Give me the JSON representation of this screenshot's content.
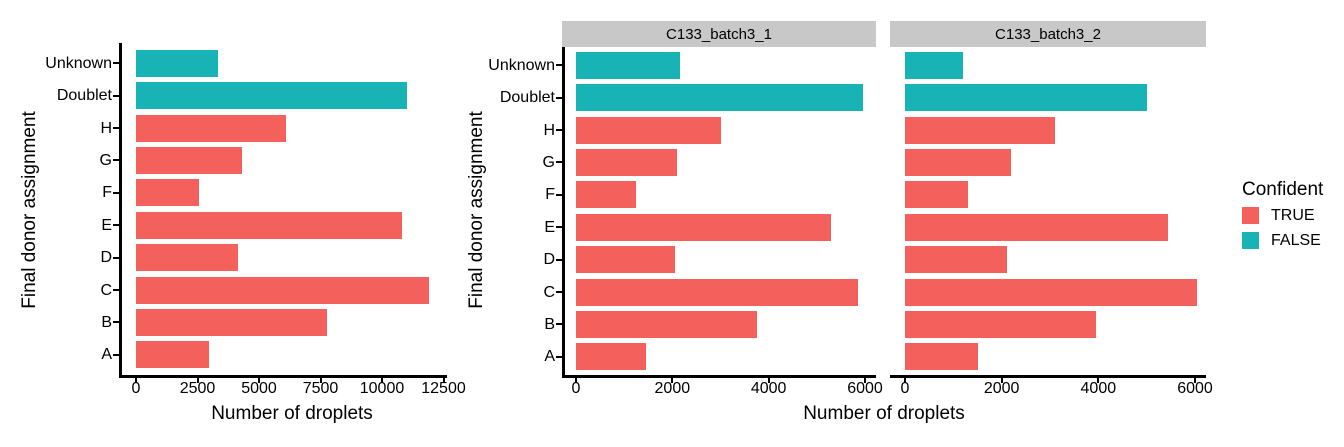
{
  "figure": {
    "background": "#FFFFFF",
    "colors": {
      "TRUE": "#F4605C",
      "FALSE": "#17B3B5",
      "strip_bg": "#C8C8C8",
      "axis": "#000000",
      "text": "#000000"
    },
    "legend": {
      "title": "Confident",
      "items": [
        {
          "label": "TRUE",
          "key": "TRUE"
        },
        {
          "label": "FALSE",
          "key": "FALSE"
        }
      ]
    }
  },
  "chart_data": [
    {
      "type": "bar",
      "orientation": "horizontal",
      "panel": "overall",
      "xlabel": "Number of droplets",
      "ylabel": "Final donor assignment",
      "categories_top_to_bottom": [
        "Unknown",
        "Doublet",
        "H",
        "G",
        "F",
        "E",
        "D",
        "C",
        "B",
        "A"
      ],
      "confident_top_to_bottom": [
        "FALSE",
        "FALSE",
        "TRUE",
        "TRUE",
        "TRUE",
        "TRUE",
        "TRUE",
        "TRUE",
        "TRUE",
        "TRUE"
      ],
      "values_top_to_bottom": [
        3350,
        11000,
        6100,
        4300,
        2550,
        10800,
        4150,
        11900,
        7750,
        2950
      ],
      "xlim": [
        0,
        12500
      ],
      "xticks": [
        0,
        2500,
        5000,
        7500,
        10000,
        12500
      ],
      "grid": false,
      "legend_position": "none"
    },
    {
      "type": "bar",
      "orientation": "horizontal",
      "xlabel": "Number of droplets",
      "ylabel": "Final donor assignment",
      "categories_top_to_bottom": [
        "Unknown",
        "Doublet",
        "H",
        "G",
        "F",
        "E",
        "D",
        "C",
        "B",
        "A"
      ],
      "confident_top_to_bottom": [
        "FALSE",
        "FALSE",
        "TRUE",
        "TRUE",
        "TRUE",
        "TRUE",
        "TRUE",
        "TRUE",
        "TRUE",
        "TRUE"
      ],
      "xlim": [
        0,
        6000
      ],
      "xticks": [
        0,
        2000,
        4000,
        6000
      ],
      "grid": false,
      "legend_position": "right",
      "facets": [
        {
          "label": "C133_batch3_1",
          "values_top_to_bottom": [
            2150,
            5950,
            3000,
            2100,
            1250,
            5300,
            2050,
            5850,
            3750,
            1450
          ]
        },
        {
          "label": "C133_batch3_2",
          "values_top_to_bottom": [
            1200,
            5000,
            3100,
            2200,
            1300,
            5450,
            2100,
            6050,
            3950,
            1500
          ]
        }
      ]
    }
  ]
}
